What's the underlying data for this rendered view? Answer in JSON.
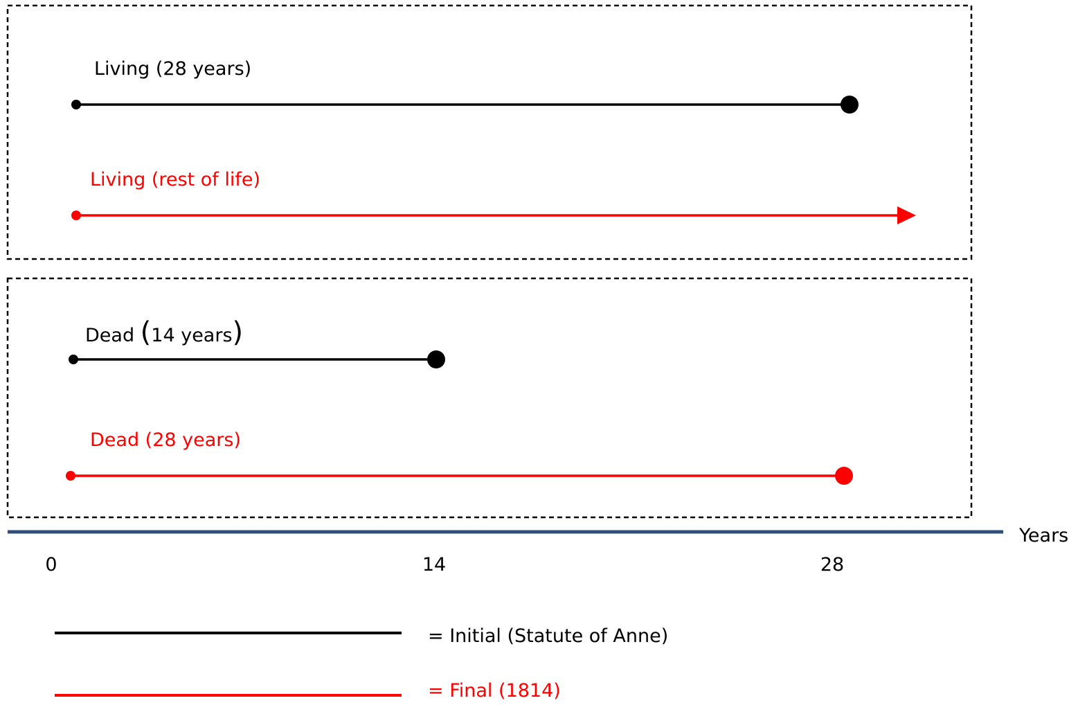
{
  "colors": {
    "initial": "#000000",
    "final": "#ff0000",
    "axis": "#2f4f7a",
    "frame": "#000000"
  },
  "axis": {
    "unit_label": "Years",
    "ticks": [
      {
        "label": "0",
        "value": 0
      },
      {
        "label": "14",
        "value": 14
      },
      {
        "label": "28",
        "value": 28
      }
    ]
  },
  "groups": [
    {
      "bars": [
        {
          "label": "Living (28 years)",
          "kind": "initial",
          "start": 0,
          "end": 28,
          "end_marker": "dot"
        },
        {
          "label": "Living (rest of life)",
          "kind": "final",
          "start": 0,
          "end": null,
          "end_marker": "arrow"
        }
      ]
    },
    {
      "bars": [
        {
          "label_main": "Dead ",
          "label_open": "(",
          "label_inner": "14 years",
          "label_close": ")",
          "kind": "initial",
          "start": 0,
          "end": 14,
          "end_marker": "dot"
        },
        {
          "label": "Dead (28 years)",
          "kind": "final",
          "start": 0,
          "end": 28,
          "end_marker": "dot"
        }
      ]
    }
  ],
  "legend": [
    {
      "kind": "initial",
      "label": "= Initial (Statute of Anne)"
    },
    {
      "kind": "final",
      "label": "= Final (1814)"
    }
  ]
}
